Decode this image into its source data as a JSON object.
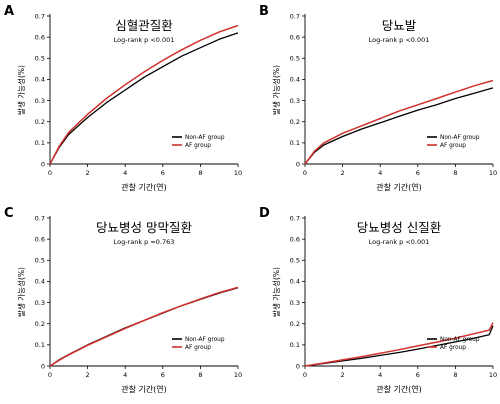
{
  "chart_data": [
    {
      "panel": "A",
      "type": "line",
      "title": "심혈관질환",
      "annotation": "Log-rank p <0.001",
      "xlabel": "관찰 기간(연)",
      "ylabel": "발생 가능성(%)",
      "xlim": [
        0,
        10
      ],
      "ylim": [
        0,
        0.7
      ],
      "xticks": [
        "0",
        "2",
        "4",
        "6",
        "8",
        "10"
      ],
      "yticks": [
        "0",
        "0.1",
        "0.2",
        "0.3",
        "0.4",
        "0.5",
        "0.6",
        "0.7"
      ],
      "grid": false,
      "legend_position": "bottom-right",
      "x": [
        0,
        0.5,
        1,
        2,
        3,
        4,
        5,
        6,
        7,
        8,
        9,
        10
      ],
      "series": [
        {
          "name": "Non-AF group",
          "color": "#000000",
          "values": [
            0,
            0.08,
            0.14,
            0.22,
            0.29,
            0.35,
            0.41,
            0.46,
            0.51,
            0.55,
            0.59,
            0.62
          ]
        },
        {
          "name": "AF group",
          "color": "#d0312d",
          "values": [
            0,
            0.085,
            0.15,
            0.235,
            0.31,
            0.375,
            0.435,
            0.49,
            0.54,
            0.585,
            0.625,
            0.655
          ]
        }
      ]
    },
    {
      "panel": "B",
      "type": "line",
      "title": "당뇨발",
      "annotation": "Log-rank p <0.001",
      "xlabel": "관찰 기간(연)",
      "ylabel": "발생 가능성(%)",
      "xlim": [
        0,
        10
      ],
      "ylim": [
        0,
        0.7
      ],
      "xticks": [
        "0",
        "2",
        "4",
        "6",
        "8",
        "10"
      ],
      "yticks": [
        "0",
        "0.1",
        "0.2",
        "0.3",
        "0.4",
        "0.5",
        "0.6",
        "0.7"
      ],
      "grid": false,
      "legend_position": "bottom-right",
      "x": [
        0,
        0.5,
        1,
        2,
        3,
        4,
        5,
        6,
        7,
        8,
        9,
        10
      ],
      "series": [
        {
          "name": "Non-AF group",
          "color": "#000000",
          "values": [
            0,
            0.055,
            0.09,
            0.13,
            0.165,
            0.195,
            0.225,
            0.255,
            0.28,
            0.31,
            0.335,
            0.36
          ]
        },
        {
          "name": "AF group",
          "color": "#d0312d",
          "values": [
            0,
            0.06,
            0.1,
            0.145,
            0.18,
            0.215,
            0.25,
            0.28,
            0.31,
            0.34,
            0.37,
            0.395
          ]
        }
      ]
    },
    {
      "panel": "C",
      "type": "line",
      "title": "당뇨병성 망막질환",
      "annotation": "Log-rank p =0.763",
      "xlabel": "관찰 기간(연)",
      "ylabel": "발생 가능성(%)",
      "xlim": [
        0,
        10
      ],
      "ylim": [
        0,
        0.7
      ],
      "xticks": [
        "0",
        "2",
        "4",
        "6",
        "8",
        "10"
      ],
      "yticks": [
        "0",
        "0.1",
        "0.2",
        "0.3",
        "0.4",
        "0.5",
        "0.6",
        "0.7"
      ],
      "grid": false,
      "legend_position": "bottom-right",
      "x": [
        0,
        0.5,
        1,
        2,
        3,
        4,
        5,
        6,
        7,
        8,
        9,
        10
      ],
      "series": [
        {
          "name": "Non-AF group",
          "color": "#000000",
          "values": [
            0,
            0.03,
            0.055,
            0.1,
            0.14,
            0.18,
            0.215,
            0.25,
            0.285,
            0.315,
            0.345,
            0.37
          ]
        },
        {
          "name": "AF group",
          "color": "#d0312d",
          "values": [
            0,
            0.028,
            0.053,
            0.098,
            0.138,
            0.178,
            0.215,
            0.252,
            0.285,
            0.317,
            0.347,
            0.372
          ]
        }
      ]
    },
    {
      "panel": "D",
      "type": "line",
      "title": "당뇨병성 신질환",
      "annotation": "Log-rank p <0.001",
      "xlabel": "관찰 기간(연)",
      "ylabel": "발생 가능성(%)",
      "xlim": [
        0,
        10
      ],
      "ylim": [
        0,
        0.7
      ],
      "xticks": [
        "0",
        "2",
        "4",
        "6",
        "8",
        "10"
      ],
      "yticks": [
        "0",
        "0.1",
        "0.2",
        "0.3",
        "0.4",
        "0.5",
        "0.6",
        "0.7"
      ],
      "grid": false,
      "legend_position": "bottom-right",
      "x": [
        0,
        0.5,
        1,
        2,
        3,
        4,
        5,
        6,
        7,
        8,
        9,
        9.8,
        10
      ],
      "series": [
        {
          "name": "Non-AF group",
          "color": "#000000",
          "values": [
            0,
            0.006,
            0.012,
            0.024,
            0.036,
            0.05,
            0.064,
            0.08,
            0.097,
            0.114,
            0.132,
            0.148,
            0.19
          ]
        },
        {
          "name": "AF group",
          "color": "#d0312d",
          "values": [
            0,
            0.007,
            0.014,
            0.029,
            0.044,
            0.06,
            0.077,
            0.095,
            0.113,
            0.132,
            0.153,
            0.17,
            0.205
          ]
        }
      ]
    }
  ]
}
